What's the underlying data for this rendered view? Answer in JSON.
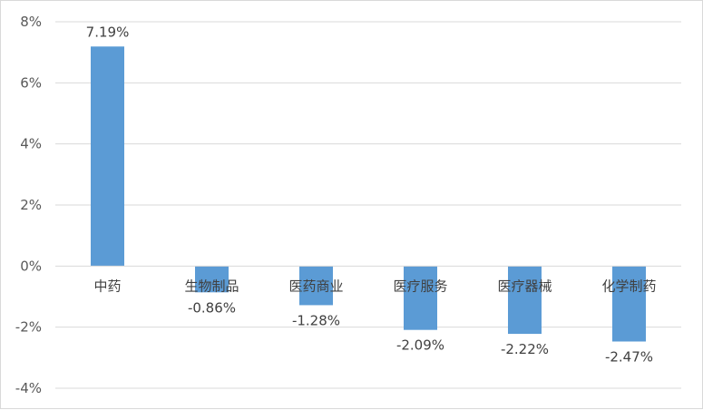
{
  "chart_data": {
    "type": "bar",
    "title": "",
    "xlabel": "",
    "ylabel": "",
    "categories": [
      "中药",
      "生物制品",
      "医药商业",
      "医疗服务",
      "医疗器械",
      "化学制药"
    ],
    "values": [
      7.19,
      -0.86,
      -1.28,
      -2.09,
      -2.22,
      -2.47
    ],
    "data_labels": [
      "7.19%",
      "-0.86%",
      "-1.28%",
      "-2.09%",
      "-2.22%",
      "-2.47%"
    ],
    "ylim": [
      -4,
      8
    ],
    "yticks": [
      8,
      6,
      4,
      2,
      0,
      -2,
      -4
    ],
    "ytick_labels": [
      "8%",
      "6%",
      "4%",
      "2%",
      "0%",
      "-2%",
      "-4%"
    ],
    "grid": true,
    "legend": "none",
    "bar_color": "#5b9bd5"
  }
}
